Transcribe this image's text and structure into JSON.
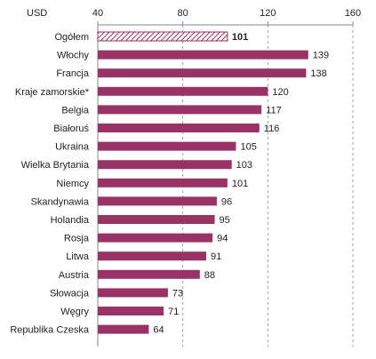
{
  "chart_data": {
    "type": "bar",
    "orientation": "horizontal",
    "unit": "USD",
    "xlim": [
      40,
      160
    ],
    "xticks": [
      "40",
      "80",
      "120",
      "160"
    ],
    "grid": "vertical dashed",
    "categories": [
      "Ogółem",
      "Włochy",
      "Francja",
      "Kraje zamorskie*",
      "Belgia",
      "Białoruś",
      "Ukraina",
      "Wielka Brytania",
      "Niemcy",
      "Skandynawia",
      "Holandia",
      "Rosja",
      "Litwa",
      "Austria",
      "Słowacja",
      "Węgry",
      "Republika Czeska"
    ],
    "values": [
      101,
      139,
      138,
      120,
      117,
      116,
      105,
      103,
      101,
      96,
      95,
      94,
      91,
      88,
      73,
      71,
      64
    ],
    "value_labels": [
      "101",
      "139",
      "138",
      "120",
      "117",
      "116",
      "105",
      "103",
      "101",
      "96",
      "95",
      "94",
      "91",
      "88",
      "73",
      "71",
      "64"
    ],
    "highlighted_category": "Ogółem",
    "colors": {
      "bar": "#993366",
      "highlight_stroke": "#993366",
      "highlight_hatch": "#993366",
      "grid": "#a0a0a0",
      "text": "#222222"
    }
  }
}
